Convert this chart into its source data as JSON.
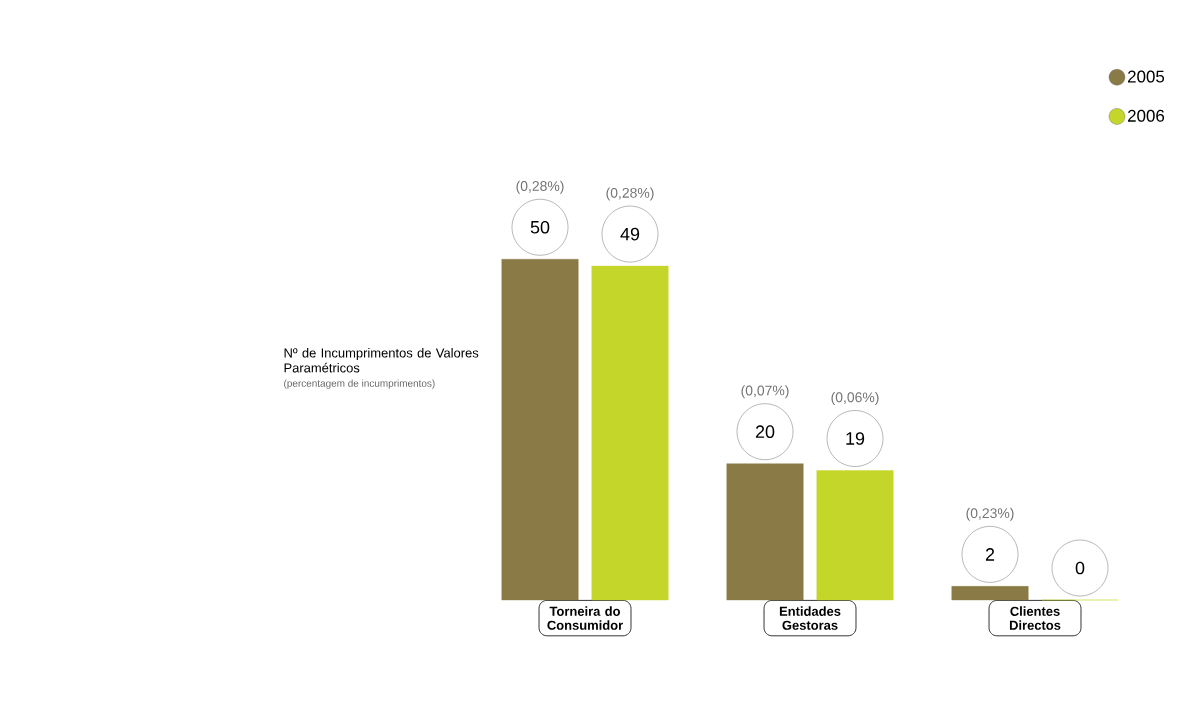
{
  "chart_data": {
    "type": "bar",
    "ylabel": "Nº de Incumprimentos de Valores Paramétricos",
    "subtitle": "(percentagem de incumprimentos)",
    "categories": [
      "Torneira do Consumidor",
      "Entidades Gestoras",
      "Clientes Directos"
    ],
    "series": [
      {
        "name": "2005",
        "color": "#8a7a45",
        "values": [
          50,
          20,
          2
        ]
      },
      {
        "name": "2006",
        "color": "#c5d62a",
        "values": [
          49,
          19,
          0
        ]
      }
    ],
    "data_labels": true,
    "legend": "top right",
    "annotations": [
      "(0,28%)",
      "(0,28%)",
      "(0,07%)",
      "(0,06%)",
      "(0,23%)"
    ]
  }
}
